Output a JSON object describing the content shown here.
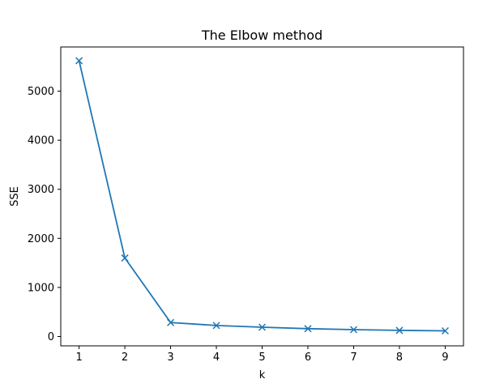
{
  "chart_data": {
    "type": "line",
    "title": "The Elbow method",
    "xlabel": "k",
    "ylabel": "SSE",
    "x": [
      1,
      2,
      3,
      4,
      5,
      6,
      7,
      8,
      9
    ],
    "series": [
      {
        "values": [
          5620,
          1600,
          285,
          225,
          190,
          160,
          140,
          125,
          115
        ],
        "color": "#1f77b4",
        "marker": "x"
      }
    ],
    "xticks": [
      1,
      2,
      3,
      4,
      5,
      6,
      7,
      8,
      9
    ],
    "yticks": [
      0,
      1000,
      2000,
      3000,
      4000,
      5000
    ],
    "xlim": [
      0.6,
      9.4
    ],
    "ylim": [
      -190,
      5900
    ],
    "grid": false,
    "legend": "none"
  }
}
